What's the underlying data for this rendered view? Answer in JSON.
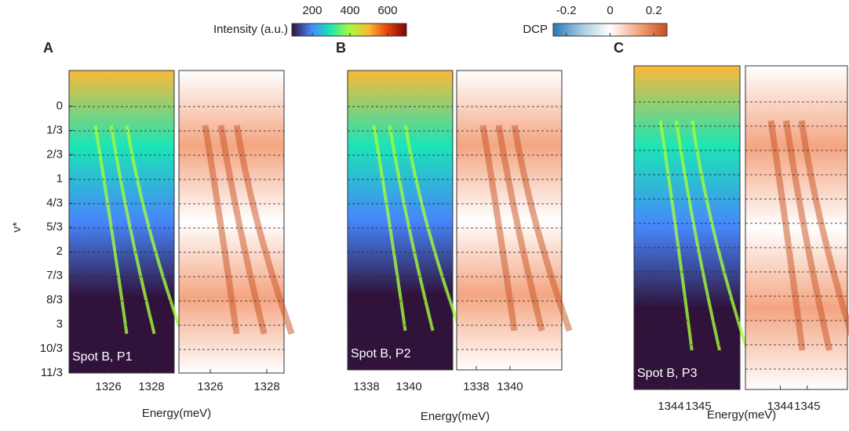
{
  "chart_data": [
    {
      "type": "colorbar",
      "label": "Intensity (a.u.)",
      "xlim": [
        92,
        700
      ],
      "xticks": [
        200,
        400,
        600
      ],
      "colors": [
        "#30123b",
        "#4686fb",
        "#1be5b5",
        "#a4fc3c",
        "#fbb938",
        "#e4460a",
        "#7a0403"
      ]
    },
    {
      "type": "colorbar",
      "label": "DCP",
      "xlim": [
        -0.26,
        0.26
      ],
      "xticks": [
        -0.2,
        0,
        0.2
      ],
      "colors": [
        "#2878b5",
        "#a6cbe3",
        "#ffffff",
        "#f4a582",
        "#c8501e"
      ]
    },
    {
      "type": "heatmap",
      "letter": "A",
      "annotation": "Spot B, P1",
      "xlabel": "Energy(meV)",
      "ylabel": "ν*",
      "ylim": [
        -0.49,
        3.667
      ],
      "yticks": [
        0,
        {
          "value": 0.3333,
          "label": "1/3"
        },
        {
          "value": 0.6667,
          "label": "2/3"
        },
        1,
        {
          "value": 1.3333,
          "label": "4/3"
        },
        {
          "value": 1.6667,
          "label": "5/3"
        },
        2,
        {
          "value": 2.3333,
          "label": "7/3"
        },
        {
          "value": 2.6667,
          "label": "8/3"
        },
        3,
        {
          "value": 3.3333,
          "label": "10/3"
        },
        {
          "value": 3.6667,
          "label": "11/3"
        }
      ],
      "panels": [
        {
          "xlim": [
            1324.18,
            1329.05
          ],
          "xticks": [
            1326,
            1328
          ]
        },
        {
          "xlim": [
            1324.89,
            1328.61
          ],
          "xticks": [
            1326,
            1328
          ]
        }
      ]
    },
    {
      "type": "heatmap",
      "letter": "B",
      "annotation": "Spot B, P2",
      "xlabel": "Energy(meV)",
      "panels": [
        {
          "xlim": [
            1337.11,
            1342.07
          ],
          "xticks": [
            1338,
            1340
          ]
        },
        {
          "xlim": [
            1336.84,
            1343.07
          ],
          "xticks": [
            1338,
            1340
          ]
        }
      ]
    },
    {
      "type": "heatmap",
      "letter": "C",
      "annotation": "Spot B, P3",
      "xlabel": "Energy(meV)",
      "panels": [
        {
          "xlim": [
            1342.66,
            1346.51
          ],
          "xticks": [
            1344,
            1345
          ]
        },
        {
          "xlim": [
            1342.71,
            1346.49
          ],
          "xticks": [
            1344,
            1345
          ]
        }
      ]
    }
  ]
}
